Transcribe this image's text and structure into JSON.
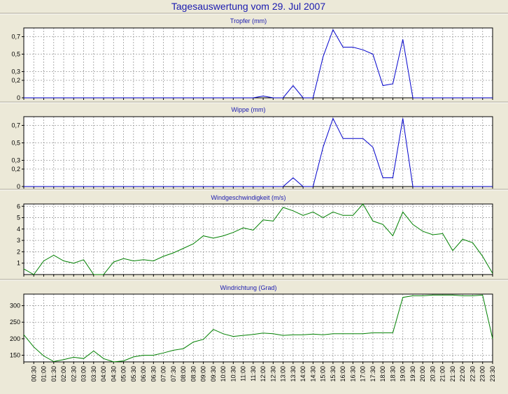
{
  "page": {
    "title": "Tagesauswertung vom 29. Jul 2007"
  },
  "colors": {
    "background": "#ece9d8",
    "plot_area": "#ffffff",
    "grid": "#9a9a9a",
    "title": "#1a1ab0",
    "rain_line": "#0000cc",
    "wind_line": "#008000"
  },
  "x_axis": {
    "labels": [
      "00:30",
      "01:00",
      "01:30",
      "02:00",
      "02:30",
      "03:00",
      "03:30",
      "04:00",
      "04:30",
      "05:00",
      "05:30",
      "06:00",
      "06:30",
      "07:00",
      "07:30",
      "08:00",
      "08:30",
      "09:00",
      "09:30",
      "10:00",
      "10:30",
      "11:00",
      "11:30",
      "12:00",
      "12:30",
      "13:00",
      "13:30",
      "14:00",
      "14:30",
      "15:00",
      "15:30",
      "16:00",
      "16:30",
      "17:00",
      "17:30",
      "18:00",
      "18:30",
      "19:00",
      "19:30",
      "20:00",
      "20:30",
      "21:00",
      "21:30",
      "22:00",
      "22:30",
      "23:00",
      "23:30"
    ]
  },
  "chart_data": [
    {
      "type": "line",
      "title": "Tropfer (mm)",
      "color": "#0000cc",
      "grid": true,
      "ylim": [
        0,
        0.8
      ],
      "yticks": [
        0,
        0.2,
        0.3,
        0.5,
        0.7
      ],
      "ytick_labels": [
        "0",
        "0,2",
        "0,3",
        "0,5",
        "0,7"
      ],
      "x_hours": [
        0,
        0.5,
        1,
        1.5,
        2,
        2.5,
        3,
        3.5,
        4,
        4.5,
        5,
        5.5,
        6,
        6.5,
        7,
        7.5,
        8,
        8.5,
        9,
        9.5,
        10,
        10.5,
        11,
        11.5,
        12,
        12.5,
        13,
        13.5,
        14,
        14.5,
        15,
        15.5,
        16,
        16.5,
        17,
        17.5,
        18,
        18.5,
        19,
        19.5,
        20,
        20.5,
        21,
        21.5,
        22,
        22.5,
        23,
        23.5
      ],
      "values": [
        0,
        0,
        0,
        0,
        0,
        0,
        0,
        0,
        0,
        0,
        0,
        0,
        0,
        0,
        0,
        0,
        0,
        0,
        0,
        0,
        0,
        0,
        0,
        0,
        0.02,
        0,
        0,
        0.14,
        0,
        0,
        0.47,
        0.78,
        0.58,
        0.58,
        0.55,
        0.5,
        0.14,
        0.16,
        0.67,
        0,
        0,
        0,
        0,
        0,
        0,
        0,
        0,
        0
      ]
    },
    {
      "type": "line",
      "title": "Wippe (mm)",
      "color": "#0000cc",
      "grid": true,
      "ylim": [
        0,
        0.8
      ],
      "yticks": [
        0,
        0.2,
        0.3,
        0.5,
        0.7
      ],
      "ytick_labels": [
        "0",
        "0,2",
        "0,3",
        "0,5",
        "0,7"
      ],
      "x_hours": [
        0,
        0.5,
        1,
        1.5,
        2,
        2.5,
        3,
        3.5,
        4,
        4.5,
        5,
        5.5,
        6,
        6.5,
        7,
        7.5,
        8,
        8.5,
        9,
        9.5,
        10,
        10.5,
        11,
        11.5,
        12,
        12.5,
        13,
        13.5,
        14,
        14.5,
        15,
        15.5,
        16,
        16.5,
        17,
        17.5,
        18,
        18.5,
        19,
        19.5,
        20,
        20.5,
        21,
        21.5,
        22,
        22.5,
        23,
        23.5
      ],
      "values": [
        0,
        0,
        0,
        0,
        0,
        0,
        0,
        0,
        0,
        0,
        0,
        0,
        0,
        0,
        0,
        0,
        0,
        0,
        0,
        0,
        0,
        0,
        0,
        0,
        0,
        0,
        0,
        0.1,
        0,
        0,
        0.45,
        0.78,
        0.55,
        0.55,
        0.55,
        0.45,
        0.1,
        0.1,
        0.78,
        0,
        0,
        0,
        0,
        0,
        0,
        0,
        0,
        0
      ]
    },
    {
      "type": "line",
      "title": "Windgeschwindigkeit (m/s)",
      "color": "#008000",
      "grid": true,
      "ylim": [
        0,
        6.2
      ],
      "yticks": [
        1,
        2,
        3,
        4,
        5,
        6
      ],
      "ytick_labels": [
        "1",
        "2",
        "3",
        "4",
        "5",
        "6"
      ],
      "x_hours": [
        0,
        0.5,
        1,
        1.5,
        2,
        2.5,
        3,
        3.5,
        4,
        4.5,
        5,
        5.5,
        6,
        6.5,
        7,
        7.5,
        8,
        8.5,
        9,
        9.5,
        10,
        10.5,
        11,
        11.5,
        12,
        12.5,
        13,
        13.5,
        14,
        14.5,
        15,
        15.5,
        16,
        16.5,
        17,
        17.5,
        18,
        18.5,
        19,
        19.5,
        20,
        20.5,
        21,
        21.5,
        22,
        22.5,
        23,
        23.5
      ],
      "values": [
        0.5,
        0,
        1.2,
        1.7,
        1.2,
        1.0,
        1.3,
        0,
        0,
        1.1,
        1.4,
        1.2,
        1.3,
        1.2,
        1.6,
        1.9,
        2.3,
        2.7,
        3.4,
        3.2,
        3.4,
        3.7,
        4.1,
        3.9,
        4.8,
        4.7,
        5.9,
        5.6,
        5.2,
        5.5,
        5.0,
        5.5,
        5.2,
        5.2,
        6.2,
        4.7,
        4.4,
        3.4,
        5.5,
        4.4,
        3.8,
        3.5,
        3.6,
        2.1,
        3.1,
        2.8,
        1.6,
        0.1
      ]
    },
    {
      "type": "line",
      "title": "Windrichtung (Grad)",
      "color": "#008000",
      "grid": true,
      "ylim": [
        130,
        335
      ],
      "yticks": [
        150,
        200,
        250,
        300
      ],
      "ytick_labels": [
        "150",
        "200",
        "250",
        "300"
      ],
      "x_hours": [
        0,
        0.5,
        1,
        1.5,
        2,
        2.5,
        3,
        3.5,
        4,
        4.5,
        5,
        5.5,
        6,
        6.5,
        7,
        7.5,
        8,
        8.5,
        9,
        9.5,
        10,
        10.5,
        11,
        11.5,
        12,
        12.5,
        13,
        13.5,
        14,
        14.5,
        15,
        15.5,
        16,
        16.5,
        17,
        17.5,
        18,
        18.5,
        19,
        19.5,
        20,
        20.5,
        21,
        21.5,
        22,
        22.5,
        23,
        23.5
      ],
      "values": [
        212,
        175,
        148,
        131,
        137,
        144,
        140,
        163,
        140,
        130,
        133,
        145,
        150,
        150,
        157,
        165,
        170,
        190,
        198,
        228,
        215,
        207,
        210,
        213,
        217,
        215,
        210,
        212,
        212,
        214,
        212,
        215,
        215,
        215,
        215,
        218,
        218,
        218,
        325,
        330,
        330,
        332,
        332,
        332,
        330,
        330,
        332,
        200
      ]
    }
  ]
}
